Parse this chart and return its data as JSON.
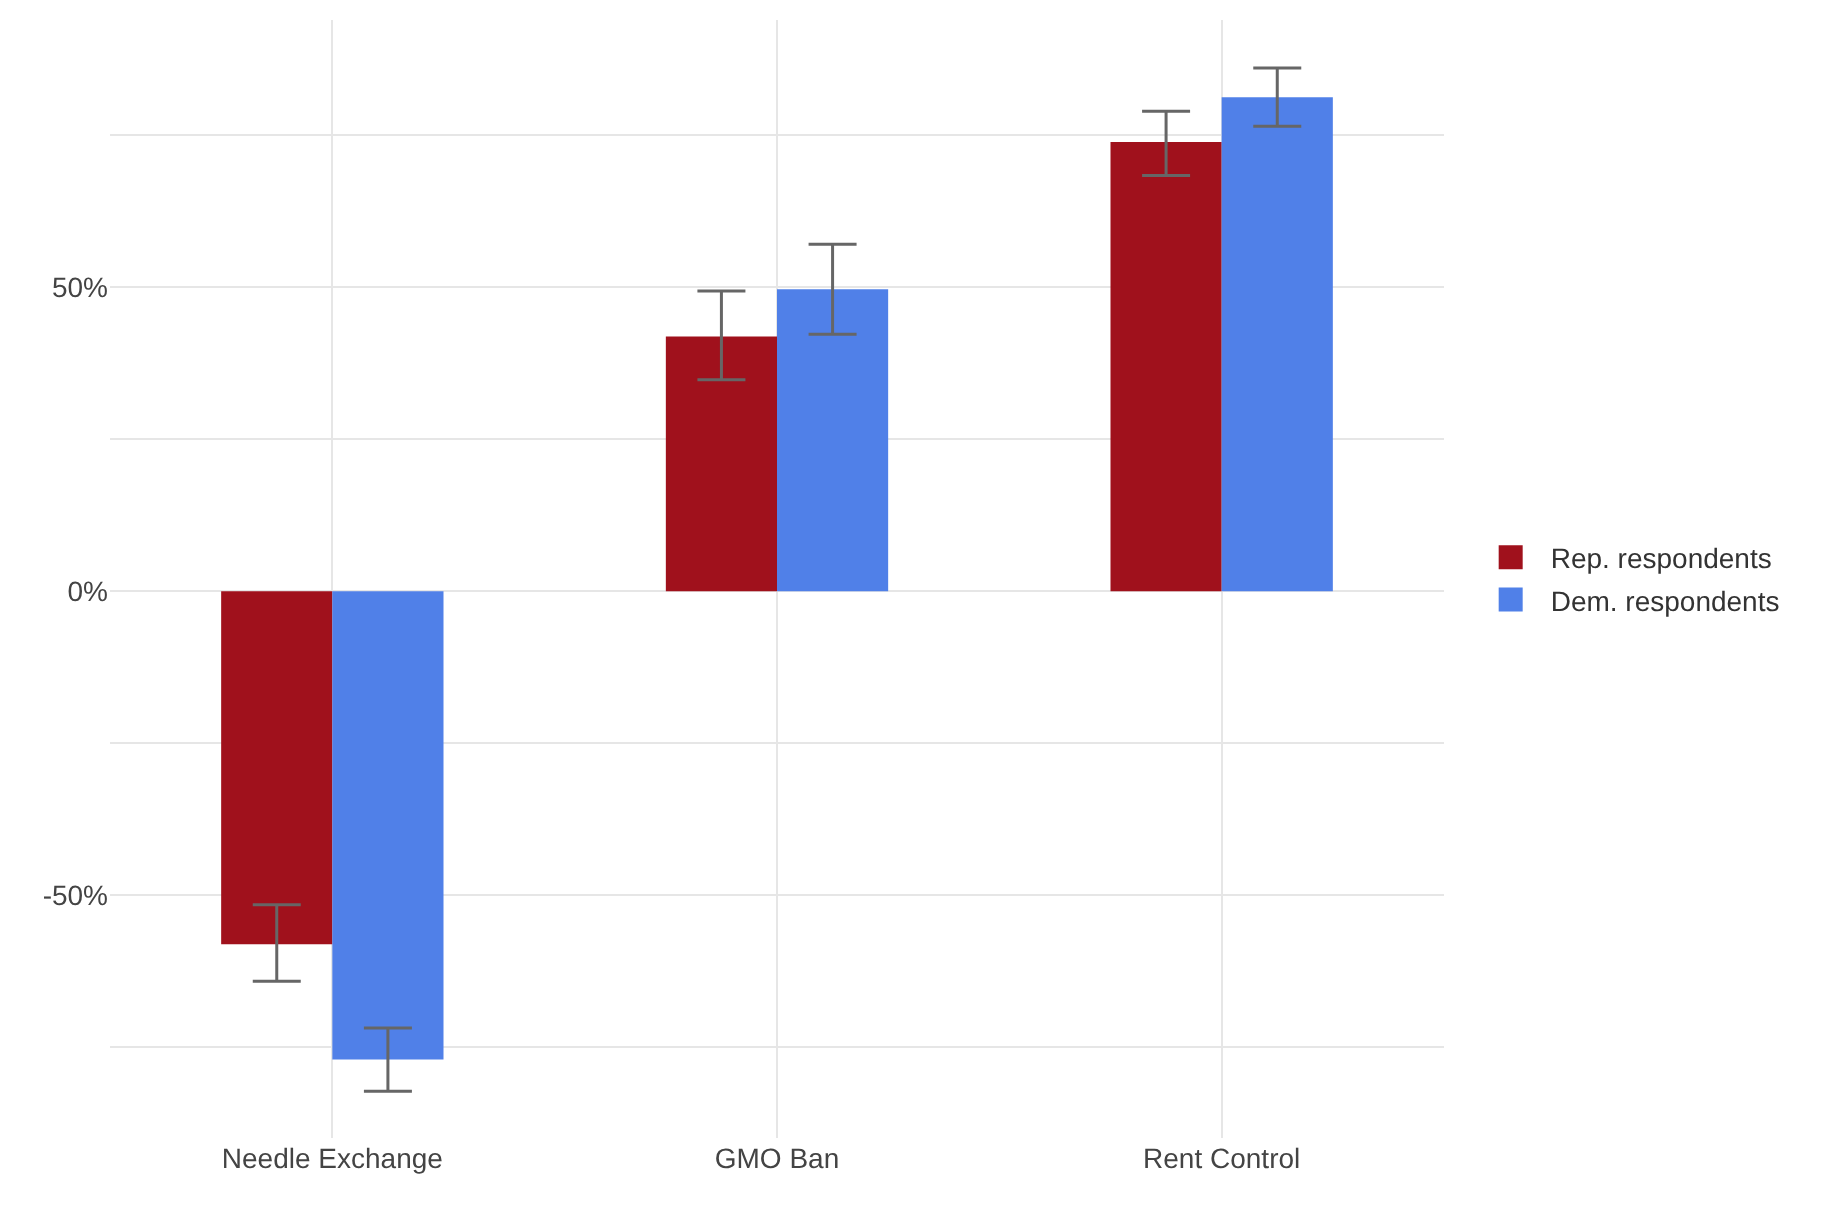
{
  "chart_data": {
    "type": "bar",
    "categories": [
      "Needle Exchange",
      "GMO Ban",
      "Rent Control"
    ],
    "series": [
      {
        "name": "Rep. respondents",
        "color": "#a0111c",
        "values": [
          -58.1,
          41.9,
          73.9
        ],
        "errors": [
          [
            -64.2,
            -51.6
          ],
          [
            34.8,
            49.4
          ],
          [
            68.4,
            79.0
          ]
        ]
      },
      {
        "name": "Dem. respondents",
        "color": "#5080e8",
        "values": [
          -77.1,
          49.7,
          81.3
        ],
        "errors": [
          [
            -82.3,
            -71.9
          ],
          [
            42.3,
            57.1
          ],
          [
            76.5,
            86.1
          ]
        ]
      }
    ],
    "ylim": [
      -90,
      94
    ],
    "yticks": [
      {
        "value": -75,
        "label": null
      },
      {
        "value": -50,
        "label": "-50%"
      },
      {
        "value": -25,
        "label": null
      },
      {
        "value": 0,
        "label": "0%"
      },
      {
        "value": 25,
        "label": null
      },
      {
        "value": 50,
        "label": "50%"
      },
      {
        "value": 75,
        "label": null
      }
    ],
    "grid": true,
    "legend": "right"
  }
}
